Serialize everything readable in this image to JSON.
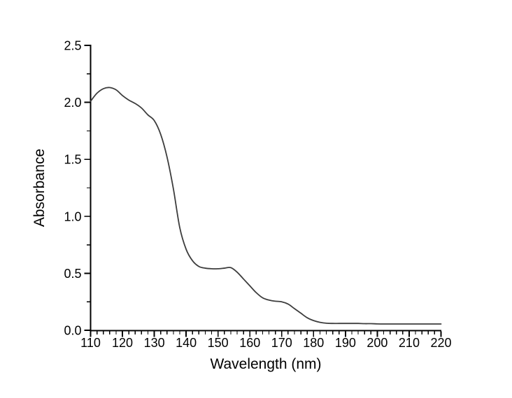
{
  "figure": {
    "background_color": "#ffffff",
    "axis_color": "#000000",
    "curve_color": "#3d3d3d",
    "text_color": "#000000"
  },
  "chart_data": {
    "type": "line",
    "title": "",
    "xlabel": "Wavelength (nm)",
    "ylabel": "Absorbance",
    "xlim": [
      110,
      220
    ],
    "ylim": [
      0.0,
      2.5
    ],
    "grid": false,
    "legend": "none",
    "x_ticks": [
      110,
      120,
      130,
      140,
      150,
      160,
      170,
      180,
      190,
      200,
      210,
      220
    ],
    "x_tick_labels": [
      "110",
      "120",
      "130",
      "140",
      "150",
      "160",
      "170",
      "180",
      "190",
      "200",
      "210",
      "220"
    ],
    "x_minor_tick_step": 2,
    "y_ticks": [
      0.0,
      0.5,
      1.0,
      1.5,
      2.0,
      2.5
    ],
    "y_tick_labels": [
      "0.0",
      "0.5",
      "1.0",
      "1.5",
      "2.0",
      "2.5"
    ],
    "y_minor_tick_step": 0.25,
    "series": [
      {
        "name": "absorbance-spectrum",
        "color": "#3d3d3d",
        "x": [
          110,
          112,
          114,
          116,
          118,
          120,
          122,
          124,
          126,
          128,
          130,
          132,
          134,
          136,
          138,
          140,
          142,
          144,
          146,
          148,
          150,
          152,
          154,
          156,
          158,
          160,
          162,
          164,
          166,
          168,
          170,
          172,
          174,
          176,
          178,
          180,
          182,
          184,
          186,
          188,
          190,
          192,
          194,
          196,
          198,
          200,
          202,
          204,
          206,
          208,
          210,
          212,
          214,
          216,
          218,
          220
        ],
        "y": [
          2.01,
          2.08,
          2.12,
          2.13,
          2.11,
          2.06,
          2.02,
          1.99,
          1.95,
          1.89,
          1.84,
          1.72,
          1.52,
          1.24,
          0.9,
          0.71,
          0.61,
          0.56,
          0.545,
          0.54,
          0.54,
          0.545,
          0.55,
          0.51,
          0.45,
          0.39,
          0.33,
          0.285,
          0.265,
          0.255,
          0.25,
          0.23,
          0.19,
          0.15,
          0.11,
          0.085,
          0.07,
          0.062,
          0.06,
          0.06,
          0.06,
          0.06,
          0.06,
          0.058,
          0.058,
          0.056,
          0.055,
          0.055,
          0.055,
          0.055,
          0.055,
          0.055,
          0.055,
          0.055,
          0.055,
          0.055
        ]
      }
    ]
  }
}
